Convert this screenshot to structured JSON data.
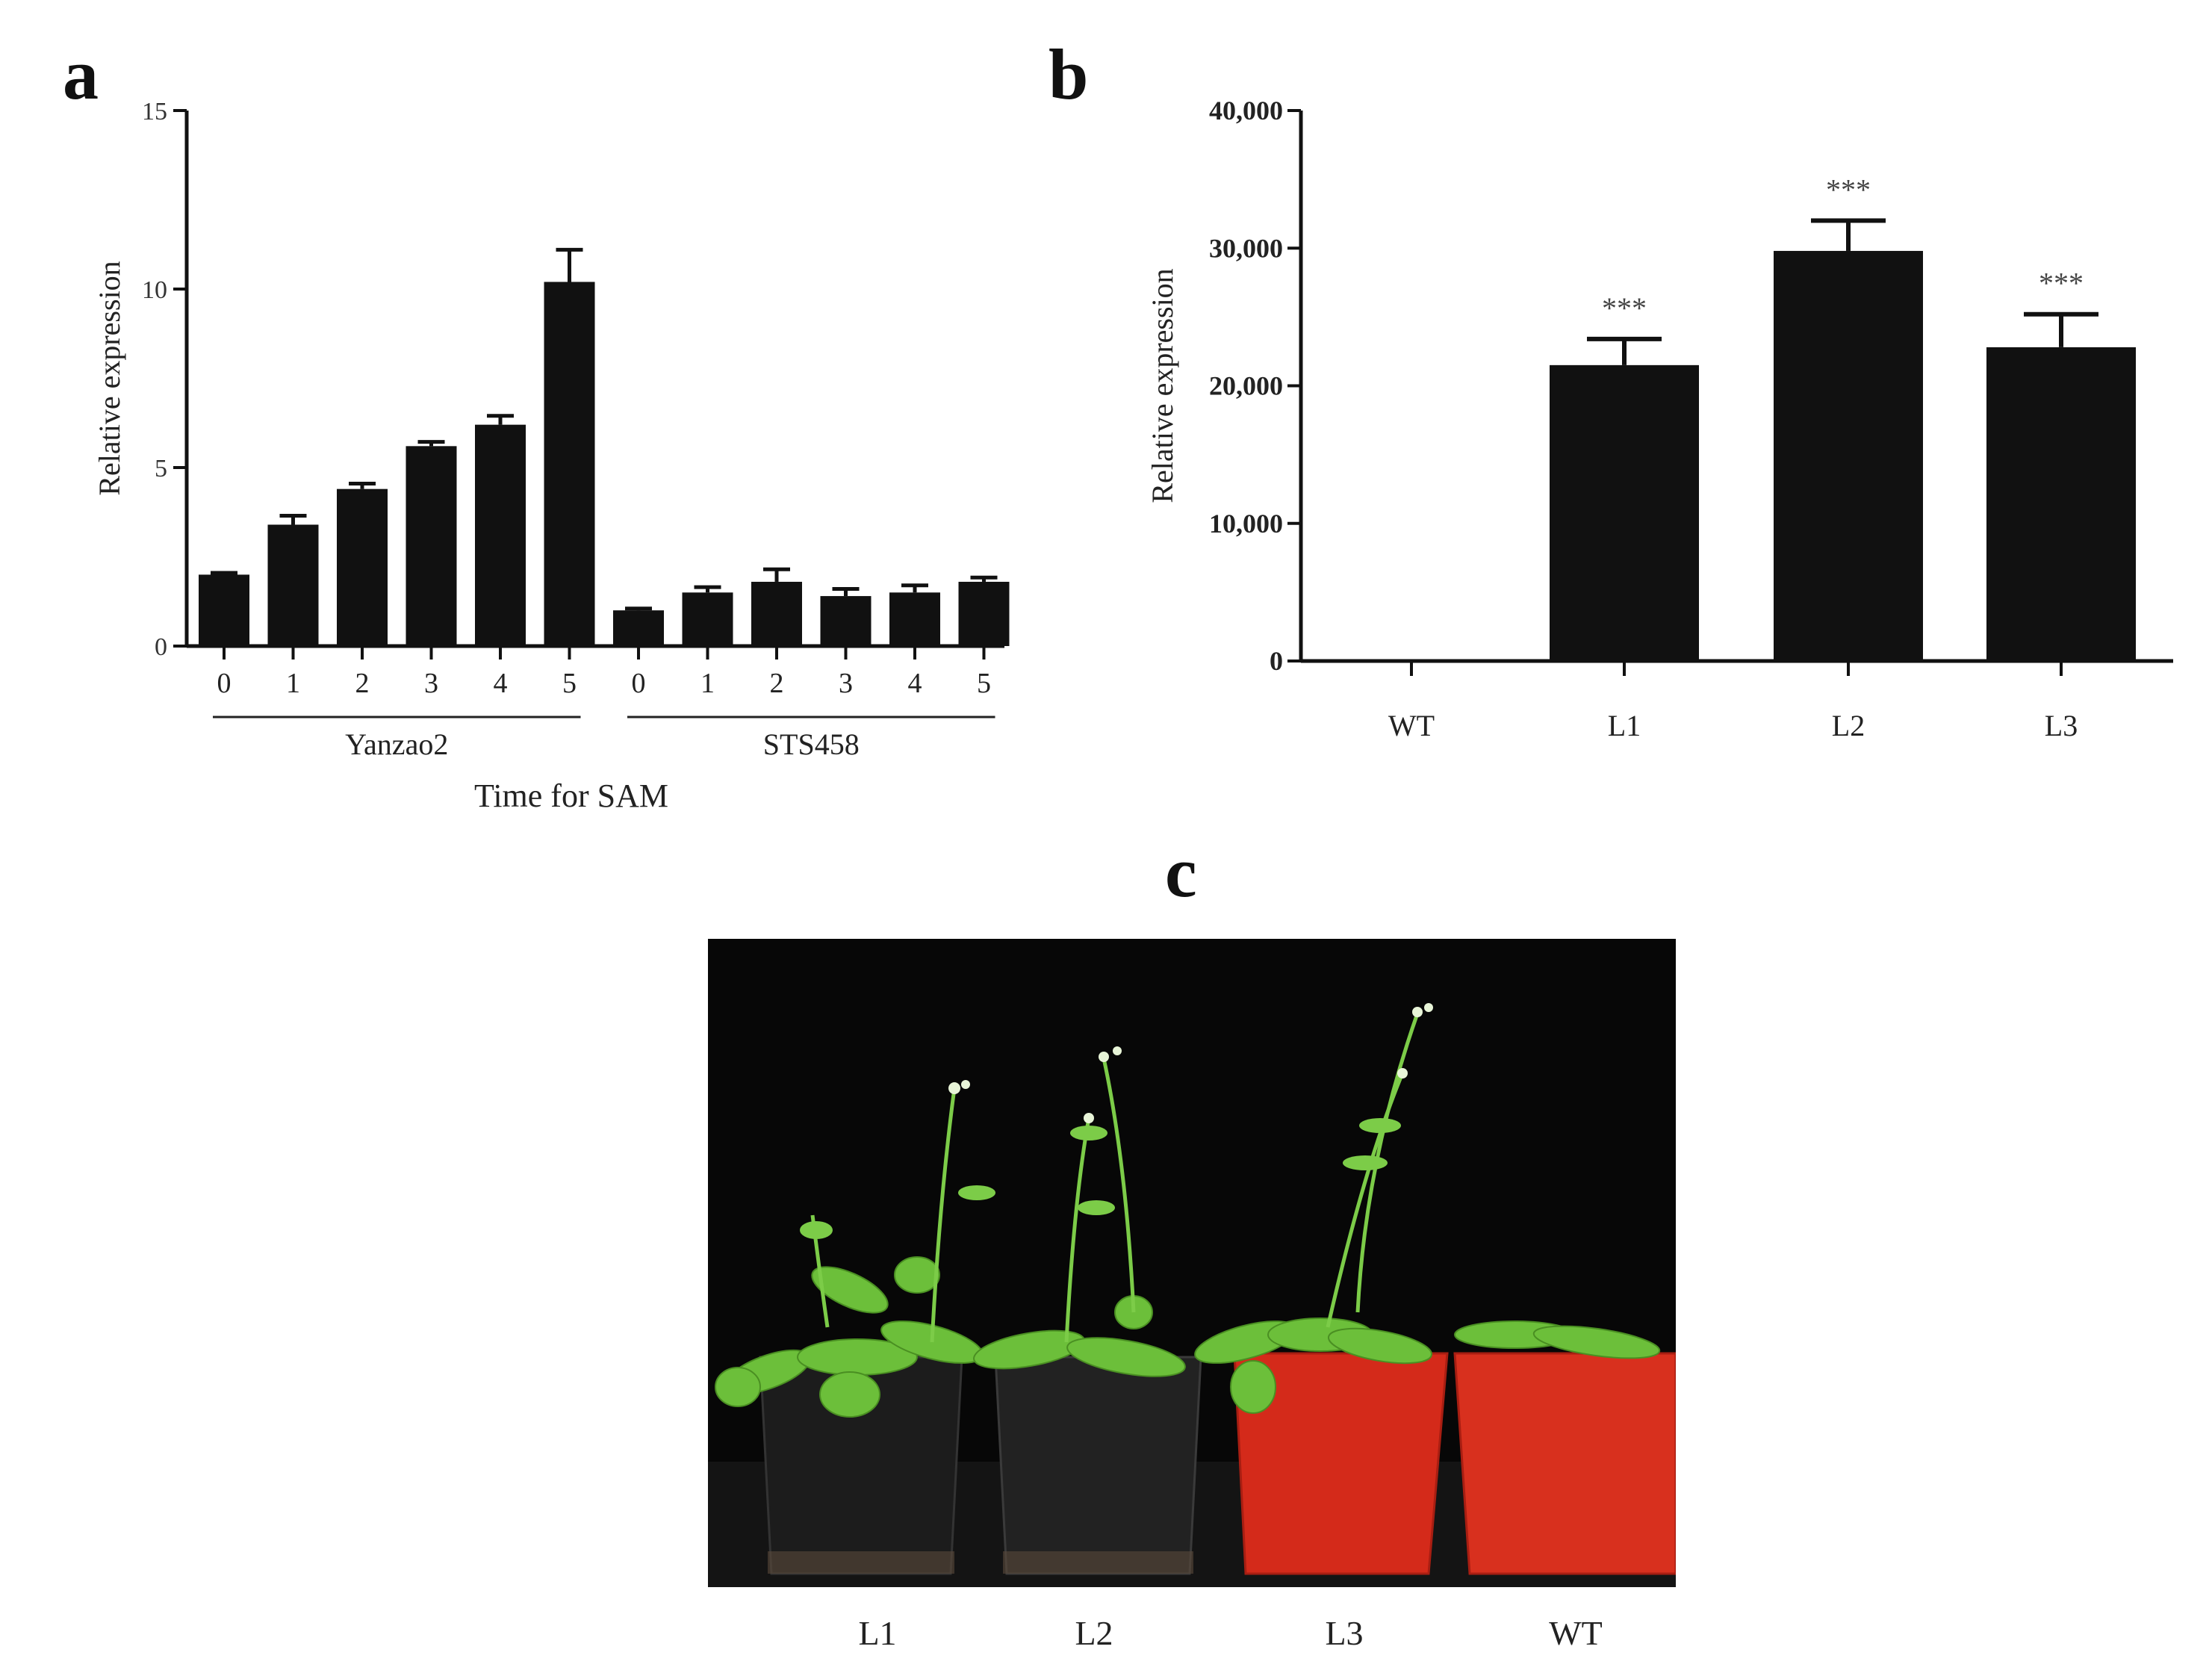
{
  "panels": {
    "a": "a",
    "b": "b",
    "c": "c"
  },
  "chart_data": [
    {
      "type": "bar",
      "panel": "a",
      "ylabel": "Relative expression",
      "xlabel": "Time  for SAM",
      "ylim": [
        0,
        15
      ],
      "yticks": [
        0,
        5,
        10,
        15
      ],
      "groups": [
        {
          "name": "Yanzao2",
          "categories": [
            "0",
            "1",
            "2",
            "3",
            "4",
            "5"
          ],
          "values": [
            2.0,
            3.4,
            4.4,
            5.6,
            6.2,
            10.2
          ],
          "errors": [
            0.05,
            0.25,
            0.15,
            0.12,
            0.25,
            0.9
          ]
        },
        {
          "name": "STS458",
          "categories": [
            "0",
            "1",
            "2",
            "3",
            "4",
            "5"
          ],
          "values": [
            1.0,
            1.5,
            1.8,
            1.4,
            1.5,
            1.8
          ],
          "errors": [
            0.05,
            0.15,
            0.35,
            0.2,
            0.2,
            0.12
          ]
        }
      ],
      "bar_color": "#111111",
      "grid": false
    },
    {
      "type": "bar",
      "panel": "b",
      "ylabel": "Relative expression",
      "xlabel": "",
      "ylim": [
        0,
        40000
      ],
      "yticks": [
        0,
        10000,
        20000,
        30000,
        40000
      ],
      "ytick_labels": [
        "0",
        "10,000",
        "20,000",
        "30,000",
        "40,000"
      ],
      "categories": [
        "WT",
        "L1",
        "L2",
        "L3"
      ],
      "values": [
        0,
        21500,
        29800,
        22800
      ],
      "errors": [
        0,
        1900,
        2200,
        2400
      ],
      "annotations": [
        "",
        "***",
        "***",
        "***"
      ],
      "bar_color": "#111111",
      "grid": false
    }
  ],
  "photo": {
    "labels": [
      "L1",
      "L2",
      "L3",
      "WT"
    ],
    "pot_colors": [
      "#1c1c1c",
      "#222222",
      "#d42a1a",
      "#d8301e"
    ],
    "plant_color": "#6cbf3a",
    "background": "#070707"
  }
}
